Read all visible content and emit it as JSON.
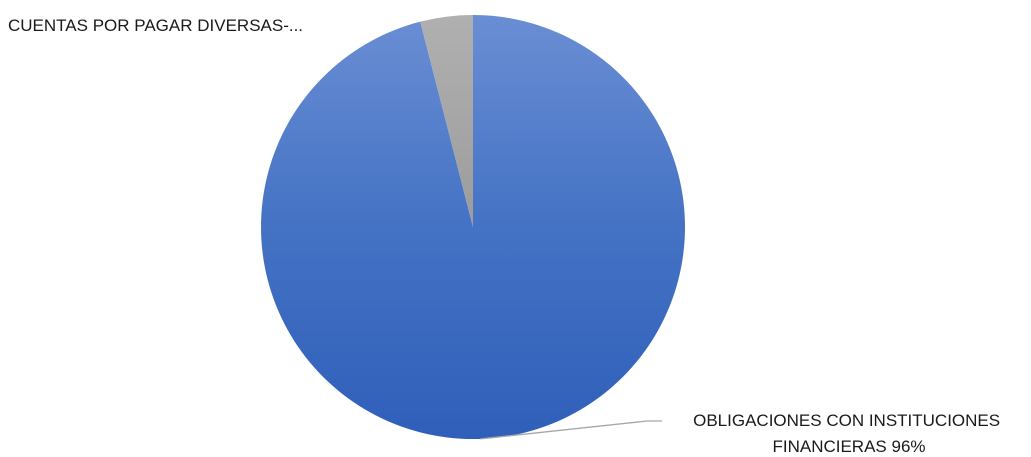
{
  "chart_data": {
    "type": "pie",
    "title": "",
    "start_angle_deg": 0,
    "direction": "clockwise",
    "slices": [
      {
        "label": "OBLIGACIONES CON INSTITUCIONES FINANCIERAS",
        "value": 96,
        "value_text": "96%",
        "color": "#4472c4",
        "data_label_lines": [
          "OBLIGACIONES CON INSTITUCIONES",
          "FINANCIERAS 96%"
        ]
      },
      {
        "label": "CUENTAS POR PAGAR DIVERSAS-...",
        "value": 4,
        "color": "#a5a5a5",
        "data_label_lines": [
          "CUENTAS POR PAGAR DIVERSAS-..."
        ]
      }
    ],
    "legend": "none"
  }
}
